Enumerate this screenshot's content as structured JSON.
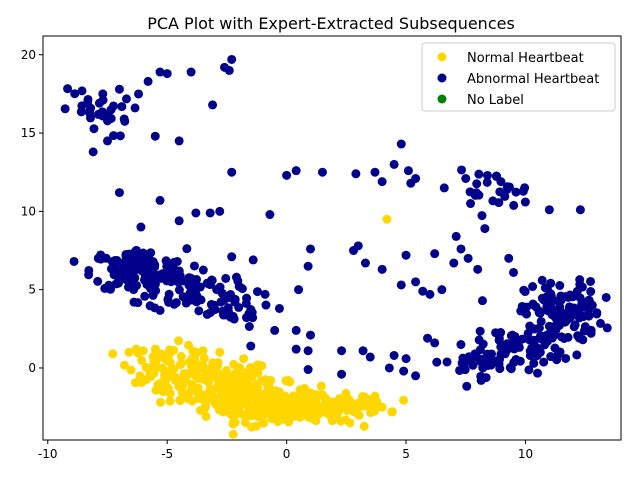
{
  "chart_data": {
    "type": "scatter",
    "title": "PCA Plot with Expert-Extracted Subsequences",
    "xlabel": "",
    "ylabel": "",
    "xlim": [
      -10.2,
      14.0
    ],
    "ylim": [
      -4.6,
      21.2
    ],
    "xticks": [
      -10,
      -5,
      0,
      5,
      10
    ],
    "yticks": [
      0,
      5,
      10,
      15,
      20
    ],
    "grid": false,
    "legend_position": "top-right",
    "series": [
      {
        "name": "Normal Heartbeat",
        "color": "#ffd700",
        "clusters": [
          {
            "cx": -3.0,
            "cy": -1.0,
            "sx": 1.2,
            "sy": 0.8,
            "n": 140
          },
          {
            "cx": -1.0,
            "cy": -2.2,
            "sx": 1.2,
            "sy": 0.6,
            "n": 170
          },
          {
            "cx": 1.0,
            "cy": -2.7,
            "sx": 1.0,
            "sy": 0.4,
            "n": 150
          },
          {
            "cx": -5.0,
            "cy": 0.3,
            "sx": 0.8,
            "sy": 0.6,
            "n": 50
          },
          {
            "cx": 3.0,
            "cy": -2.3,
            "sx": 0.6,
            "sy": 0.3,
            "n": 35
          }
        ],
        "points": [
          {
            "x": -6.6,
            "y": 1.0
          },
          {
            "x": -6.3,
            "y": 1.2
          },
          {
            "x": -6.0,
            "y": 1.1
          },
          {
            "x": -5.5,
            "y": 0.6
          },
          {
            "x": -3.5,
            "y": 1.1
          },
          {
            "x": -2.8,
            "y": 1.0
          },
          {
            "x": -1.8,
            "y": 0.6
          },
          {
            "x": -5.3,
            "y": -1.0
          },
          {
            "x": 4.0,
            "y": -2.5
          },
          {
            "x": 4.4,
            "y": -2.8
          },
          {
            "x": 3.7,
            "y": -1.8
          },
          {
            "x": 4.2,
            "y": 9.5
          }
        ]
      },
      {
        "name": "Abnormal Heartbeat",
        "color": "#00008b",
        "clusters": [
          {
            "cx": -6.2,
            "cy": 6.2,
            "sx": 1.0,
            "sy": 0.7,
            "n": 130
          },
          {
            "cx": -4.0,
            "cy": 5.0,
            "sx": 0.9,
            "sy": 0.7,
            "n": 60
          },
          {
            "cx": -2.5,
            "cy": 3.8,
            "sx": 0.8,
            "sy": 0.6,
            "n": 30
          },
          {
            "cx": -8.0,
            "cy": 16.3,
            "sx": 0.7,
            "sy": 0.8,
            "n": 30
          },
          {
            "cx": 11.6,
            "cy": 3.5,
            "sx": 0.8,
            "sy": 1.0,
            "n": 110
          },
          {
            "cx": 10.0,
            "cy": 1.5,
            "sx": 1.0,
            "sy": 0.7,
            "n": 60
          },
          {
            "cx": 8.0,
            "cy": 0.4,
            "sx": 1.0,
            "sy": 0.5,
            "n": 40
          },
          {
            "cx": 8.6,
            "cy": 11.3,
            "sx": 0.8,
            "sy": 0.6,
            "n": 25
          }
        ],
        "points": [
          {
            "x": -7.0,
            "y": 17.8
          },
          {
            "x": -6.2,
            "y": 17.5
          },
          {
            "x": -5.8,
            "y": 18.3
          },
          {
            "x": -5.3,
            "y": 18.9
          },
          {
            "x": -5.0,
            "y": 18.8
          },
          {
            "x": -4.0,
            "y": 18.9
          },
          {
            "x": -2.6,
            "y": 19.2
          },
          {
            "x": -2.3,
            "y": 19.7
          },
          {
            "x": -2.4,
            "y": 19.0
          },
          {
            "x": -3.1,
            "y": 16.8
          },
          {
            "x": -5.5,
            "y": 14.8
          },
          {
            "x": -4.5,
            "y": 14.5
          },
          {
            "x": -7.5,
            "y": 14.5
          },
          {
            "x": -8.1,
            "y": 13.8
          },
          {
            "x": -6.8,
            "y": 15.9
          },
          {
            "x": -7.0,
            "y": 11.2
          },
          {
            "x": -5.3,
            "y": 10.7
          },
          {
            "x": -4.5,
            "y": 9.4
          },
          {
            "x": -3.8,
            "y": 9.9
          },
          {
            "x": -3.2,
            "y": 9.9
          },
          {
            "x": -2.8,
            "y": 10.0
          },
          {
            "x": -0.7,
            "y": 9.8
          },
          {
            "x": -2.3,
            "y": 12.5
          },
          {
            "x": -6.1,
            "y": 9.0
          },
          {
            "x": -8.9,
            "y": 6.8
          },
          {
            "x": -1.4,
            "y": 6.9
          },
          {
            "x": -2.1,
            "y": 5.8
          },
          {
            "x": -2.3,
            "y": 7.1
          },
          {
            "x": -0.9,
            "y": 4.7
          },
          {
            "x": -0.3,
            "y": 3.8
          },
          {
            "x": -1.5,
            "y": 1.4
          },
          {
            "x": -0.5,
            "y": 2.4
          },
          {
            "x": 0.4,
            "y": 2.4
          },
          {
            "x": 0.9,
            "y": 1.1
          },
          {
            "x": 1.0,
            "y": 2.1
          },
          {
            "x": 0.5,
            "y": 5.0
          },
          {
            "x": 0.9,
            "y": 6.5
          },
          {
            "x": 1.0,
            "y": 7.6
          },
          {
            "x": 0.0,
            "y": 12.3
          },
          {
            "x": 0.4,
            "y": 12.6
          },
          {
            "x": 1.5,
            "y": 12.5
          },
          {
            "x": 2.9,
            "y": 12.4
          },
          {
            "x": 3.7,
            "y": 12.5
          },
          {
            "x": 2.8,
            "y": 7.5
          },
          {
            "x": 3.0,
            "y": 7.8
          },
          {
            "x": 3.3,
            "y": 6.7
          },
          {
            "x": 4.0,
            "y": 6.3
          },
          {
            "x": 4.8,
            "y": 5.3
          },
          {
            "x": 5.0,
            "y": 7.2
          },
          {
            "x": 5.4,
            "y": 5.5
          },
          {
            "x": 5.7,
            "y": 4.9
          },
          {
            "x": 6.0,
            "y": 4.7
          },
          {
            "x": 6.5,
            "y": 5.0
          },
          {
            "x": 6.2,
            "y": 7.3
          },
          {
            "x": 7.0,
            "y": 6.7
          },
          {
            "x": 7.1,
            "y": 8.4
          },
          {
            "x": 7.3,
            "y": 7.6
          },
          {
            "x": 7.6,
            "y": 7.0
          },
          {
            "x": 8.0,
            "y": 6.3
          },
          {
            "x": 8.2,
            "y": 4.3
          },
          {
            "x": 9.3,
            "y": 7.0
          },
          {
            "x": 9.5,
            "y": 6.1
          },
          {
            "x": 8.3,
            "y": 8.9
          },
          {
            "x": 10.3,
            "y": 5.2
          },
          {
            "x": 10.7,
            "y": 5.6
          },
          {
            "x": 11.0,
            "y": 10.1
          },
          {
            "x": 12.3,
            "y": 10.1
          },
          {
            "x": 4.8,
            "y": 14.3
          },
          {
            "x": 4.5,
            "y": 13.0
          },
          {
            "x": 5.1,
            "y": 12.6
          },
          {
            "x": 5.2,
            "y": 11.8
          },
          {
            "x": 5.4,
            "y": 12.1
          },
          {
            "x": 6.6,
            "y": 11.5
          },
          {
            "x": 7.5,
            "y": 12.1
          },
          {
            "x": 7.7,
            "y": 10.5
          },
          {
            "x": 4.0,
            "y": 11.9
          },
          {
            "x": 4.3,
            "y": 0.0
          },
          {
            "x": 4.5,
            "y": 0.8
          },
          {
            "x": 4.9,
            "y": -0.2
          },
          {
            "x": 5.4,
            "y": -0.5
          },
          {
            "x": 5.9,
            "y": 1.9
          },
          {
            "x": 6.2,
            "y": 1.6
          },
          {
            "x": 2.3,
            "y": 1.1
          },
          {
            "x": 3.2,
            "y": 1.1
          },
          {
            "x": 3.5,
            "y": 0.7
          },
          {
            "x": 2.3,
            "y": -0.4
          },
          {
            "x": 0.9,
            "y": -0.1
          },
          {
            "x": 0.4,
            "y": 1.2
          },
          {
            "x": 12.4,
            "y": 1.8
          },
          {
            "x": 12.8,
            "y": 4.0
          }
        ]
      },
      {
        "name": "No Label",
        "color": "#008000",
        "clusters": [],
        "points": []
      }
    ]
  }
}
